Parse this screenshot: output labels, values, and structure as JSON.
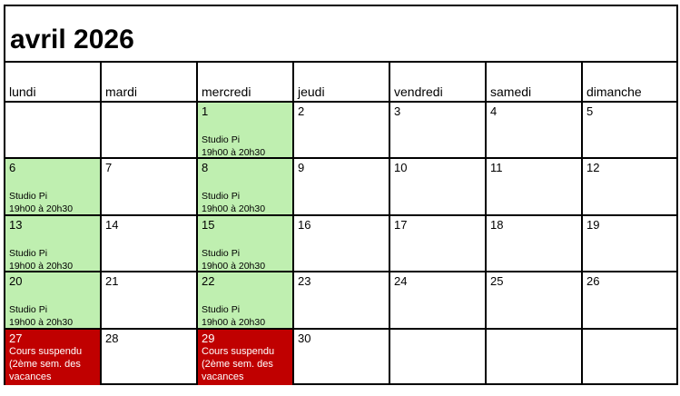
{
  "title": "avril 2026",
  "colors": {
    "event": "#bfefb0",
    "suspended": "#c00000"
  },
  "weekdays": [
    "lundi",
    "mardi",
    "mercredi",
    "jeudi",
    "vendredi",
    "samedi",
    "dimanche"
  ],
  "weeks": [
    [
      {
        "day": ""
      },
      {
        "day": ""
      },
      {
        "day": "1",
        "event": "Studio Pi",
        "time": "19h00 à 20h30",
        "type": "green"
      },
      {
        "day": "2"
      },
      {
        "day": "3"
      },
      {
        "day": "4"
      },
      {
        "day": "5"
      }
    ],
    [
      {
        "day": "6",
        "event": "Studio Pi",
        "time": "19h00 à 20h30",
        "type": "green"
      },
      {
        "day": "7"
      },
      {
        "day": "8",
        "event": "Studio Pi",
        "time": "19h00 à 20h30",
        "type": "green"
      },
      {
        "day": "9"
      },
      {
        "day": "10"
      },
      {
        "day": "11"
      },
      {
        "day": "12"
      }
    ],
    [
      {
        "day": "13",
        "event": "Studio Pi",
        "time": "19h00 à 20h30",
        "type": "green"
      },
      {
        "day": "14"
      },
      {
        "day": "15",
        "event": "Studio Pi",
        "time": "19h00 à 20h30",
        "type": "green"
      },
      {
        "day": "16"
      },
      {
        "day": "17"
      },
      {
        "day": "18"
      },
      {
        "day": "19"
      }
    ],
    [
      {
        "day": "20",
        "event": "Studio Pi",
        "time": "19h00 à 20h30",
        "type": "green"
      },
      {
        "day": "21"
      },
      {
        "day": "22",
        "event": "Studio Pi",
        "time": "19h00 à 20h30",
        "type": "green"
      },
      {
        "day": "23"
      },
      {
        "day": "24"
      },
      {
        "day": "25"
      },
      {
        "day": "26"
      }
    ],
    [
      {
        "day": "27",
        "notes": [
          "Cours suspendu",
          "(2ème sem. des",
          "vacances scolaires)"
        ],
        "type": "red"
      },
      {
        "day": "28"
      },
      {
        "day": "29",
        "notes": [
          "Cours suspendu",
          "(2ème sem. des",
          "vacances scolaires)"
        ],
        "type": "red"
      },
      {
        "day": "30"
      },
      {
        "day": ""
      },
      {
        "day": ""
      },
      {
        "day": ""
      }
    ]
  ]
}
